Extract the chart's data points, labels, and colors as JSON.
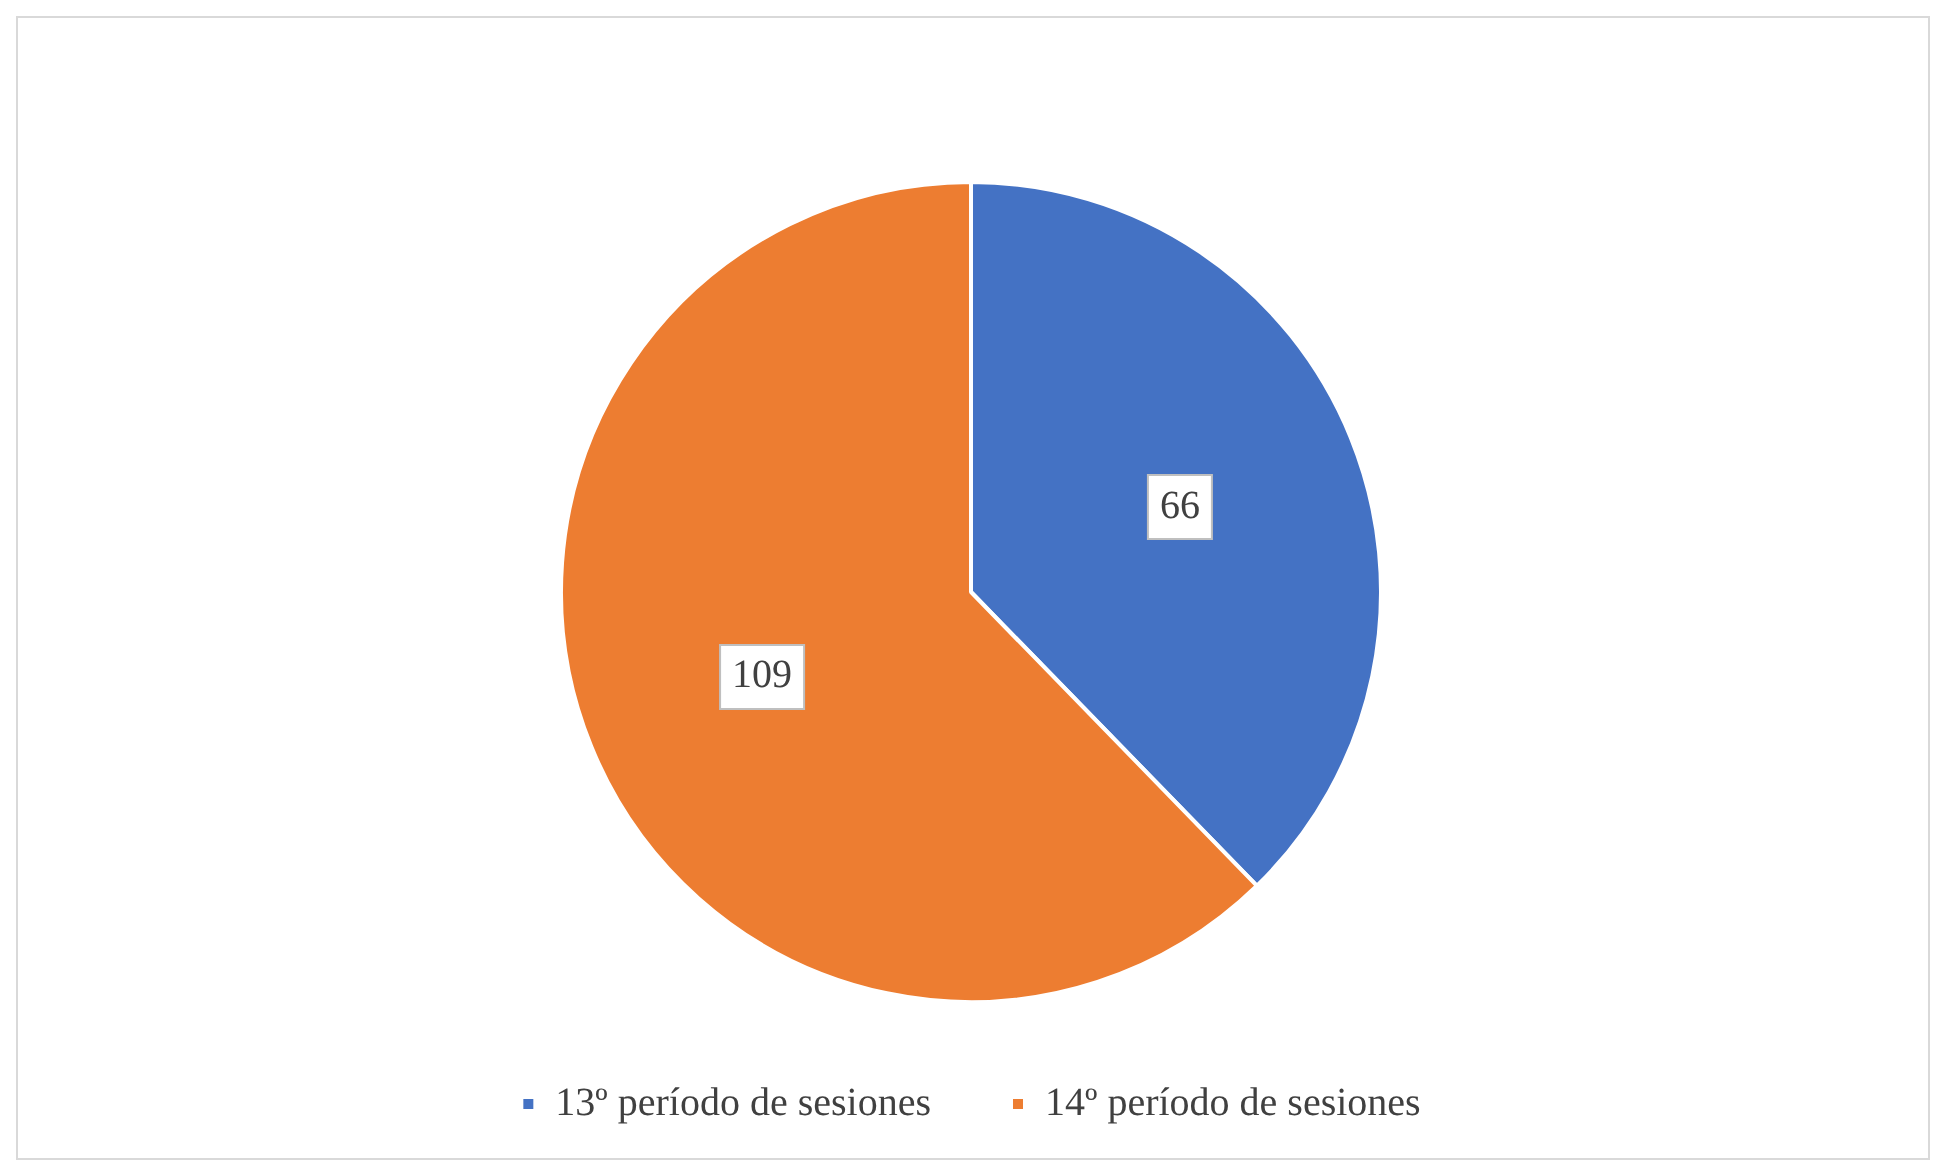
{
  "chart_data": {
    "type": "pie",
    "categories": [
      "13º período de sesiones",
      "14º período de sesiones"
    ],
    "values": [
      66,
      109
    ],
    "colors": [
      "#4472c4",
      "#ed7d31"
    ],
    "data_labels": true,
    "legend": "bottom"
  }
}
